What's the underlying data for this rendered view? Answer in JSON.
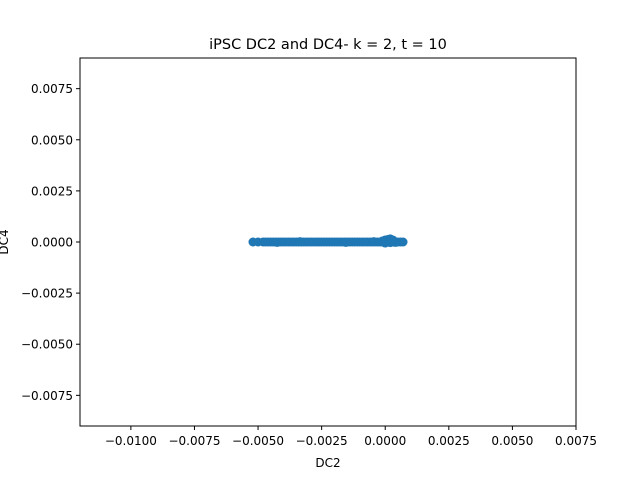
{
  "chart_data": {
    "type": "scatter",
    "title": "iPSC DC2 and DC4- k = 2, t = 10",
    "xlabel": "DC2",
    "ylabel": "DC4",
    "xlim": [
      -0.012,
      0.0075
    ],
    "ylim": [
      -0.009,
      0.009
    ],
    "xticks": [
      -0.01,
      -0.0075,
      -0.005,
      -0.0025,
      0.0,
      0.0025,
      0.005,
      0.0075
    ],
    "xtick_labels": [
      "−0.0100",
      "−0.0075",
      "−0.0050",
      "−0.0025",
      "0.0000",
      "0.0025",
      "0.0050",
      "0.0075"
    ],
    "yticks": [
      -0.0075,
      -0.005,
      -0.0025,
      0.0,
      0.0025,
      0.005,
      0.0075
    ],
    "ytick_labels": [
      "−0.0075",
      "−0.0050",
      "−0.0025",
      "0.0000",
      "0.0025",
      "0.0050",
      "0.0075"
    ],
    "grid": false,
    "legend": "none",
    "marker_color": "#1f77b4",
    "points": {
      "x": [
        -0.0052,
        -0.005,
        -0.0048,
        -0.0047,
        -0.0046,
        -0.0045,
        -0.0044,
        -0.0043,
        -0.0042,
        -0.0041,
        -0.004,
        -0.0039,
        -0.0038,
        -0.0037,
        -0.0036,
        -0.0035,
        -0.0034,
        -0.0033,
        -0.0032,
        -0.0031,
        -0.003,
        -0.0029,
        -0.0028,
        -0.0027,
        -0.0026,
        -0.0025,
        -0.0024,
        -0.0023,
        -0.0022,
        -0.0021,
        -0.002,
        -0.0019,
        -0.0018,
        -0.0017,
        -0.0016,
        -0.0015,
        -0.0014,
        -0.0013,
        -0.0012,
        -0.0011,
        -0.001,
        -0.0009,
        -0.0008,
        -0.0007,
        -0.0006,
        -0.0005,
        -0.0004,
        -0.0003,
        -0.0002,
        -0.0001,
        0.0,
        0.0001,
        0.0002,
        0.0003,
        0.0004,
        0.0005,
        0.0006,
        0.0007,
        -0.0001,
        0.0,
        0.0001,
        0.0002,
        0.0003,
        0.0,
        0.0002,
        0.0004,
        -0.00045,
        -0.00425,
        -0.00335,
        -0.00155
      ],
      "y": [
        0.0,
        0.0,
        0.0,
        0.0,
        0.0,
        0.0,
        0.0,
        0.0,
        0.0,
        0.0,
        0.0,
        0.0,
        0.0,
        0.0,
        0.0,
        0.0,
        0.0,
        0.0,
        0.0,
        0.0,
        0.0,
        0.0,
        0.0,
        0.0,
        0.0,
        0.0,
        0.0,
        0.0,
        0.0,
        0.0,
        0.0,
        0.0,
        0.0,
        0.0,
        0.0,
        0.0,
        0.0,
        0.0,
        0.0,
        0.0,
        0.0,
        0.0,
        0.0,
        0.0,
        0.0,
        0.0,
        0.0,
        0.0,
        0.0,
        0.0,
        0.0,
        0.0,
        0.0,
        0.0,
        0.0,
        0.0,
        0.0,
        0.0,
        5e-05,
        0.0001,
        0.00012,
        0.00015,
        0.0001,
        -5e-05,
        -3e-05,
        -2e-05,
        2e-05,
        -2e-05,
        2e-05,
        -2e-05
      ]
    }
  }
}
